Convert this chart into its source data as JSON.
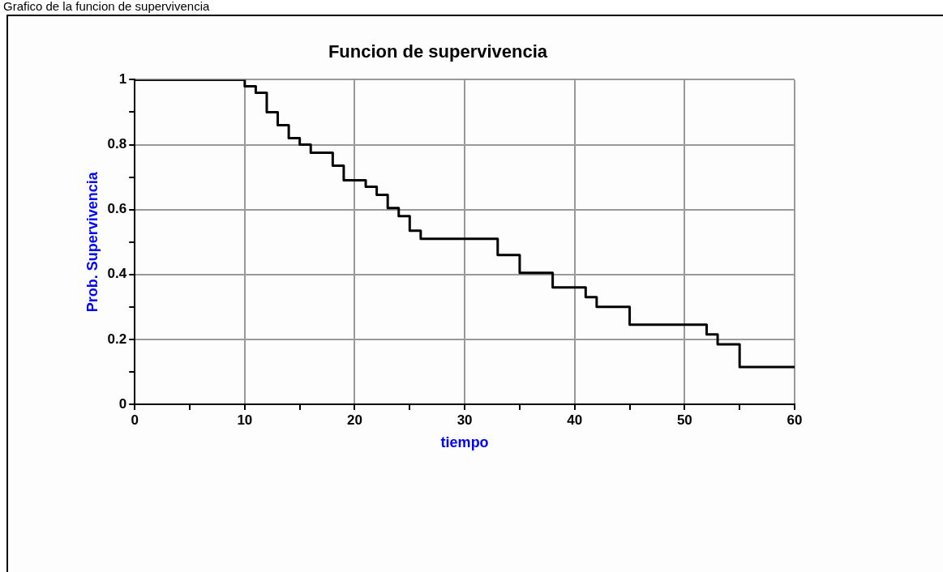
{
  "chart_data": {
    "type": "step",
    "title": "Funcion de supervivencia",
    "xlabel": "tiempo",
    "ylabel": "Prob. Supervivencia",
    "annotations": [
      "Grafico de la funcion de supervivencia"
    ],
    "x": [
      0,
      10,
      11,
      12,
      13,
      14,
      15,
      16,
      18,
      19,
      21,
      22,
      23,
      24,
      25,
      26,
      33,
      35,
      38,
      41,
      42,
      45,
      52,
      53,
      55,
      60
    ],
    "series": [
      {
        "color": "#000000",
        "values": [
          1,
          0.98,
          0.96,
          0.9,
          0.86,
          0.82,
          0.8,
          0.775,
          0.735,
          0.69,
          0.67,
          0.645,
          0.605,
          0.58,
          0.535,
          0.51,
          0.46,
          0.405,
          0.36,
          0.33,
          0.3,
          0.245,
          0.215,
          0.185,
          0.115,
          0.115
        ]
      }
    ],
    "xlim": [
      0,
      60
    ],
    "ylim": [
      0,
      1
    ],
    "xticks": [
      0,
      {
        "value": 5,
        "label": null
      },
      10,
      {
        "value": 15,
        "label": null
      },
      20,
      {
        "value": 25,
        "label": null
      },
      30,
      {
        "value": 35,
        "label": null
      },
      40,
      {
        "value": 45,
        "label": null
      },
      50,
      {
        "value": 55,
        "label": null
      },
      60
    ],
    "yticks": [
      0,
      {
        "value": 0.1,
        "label": null
      },
      0.2,
      {
        "value": 0.3,
        "label": null
      },
      0.4,
      {
        "value": 0.5,
        "label": null
      },
      0.6,
      {
        "value": 0.7,
        "label": null
      },
      0.8,
      {
        "value": 0.9,
        "label": null
      },
      1
    ],
    "grid": true,
    "legend": false,
    "marker": "none",
    "line_style": "solid"
  }
}
